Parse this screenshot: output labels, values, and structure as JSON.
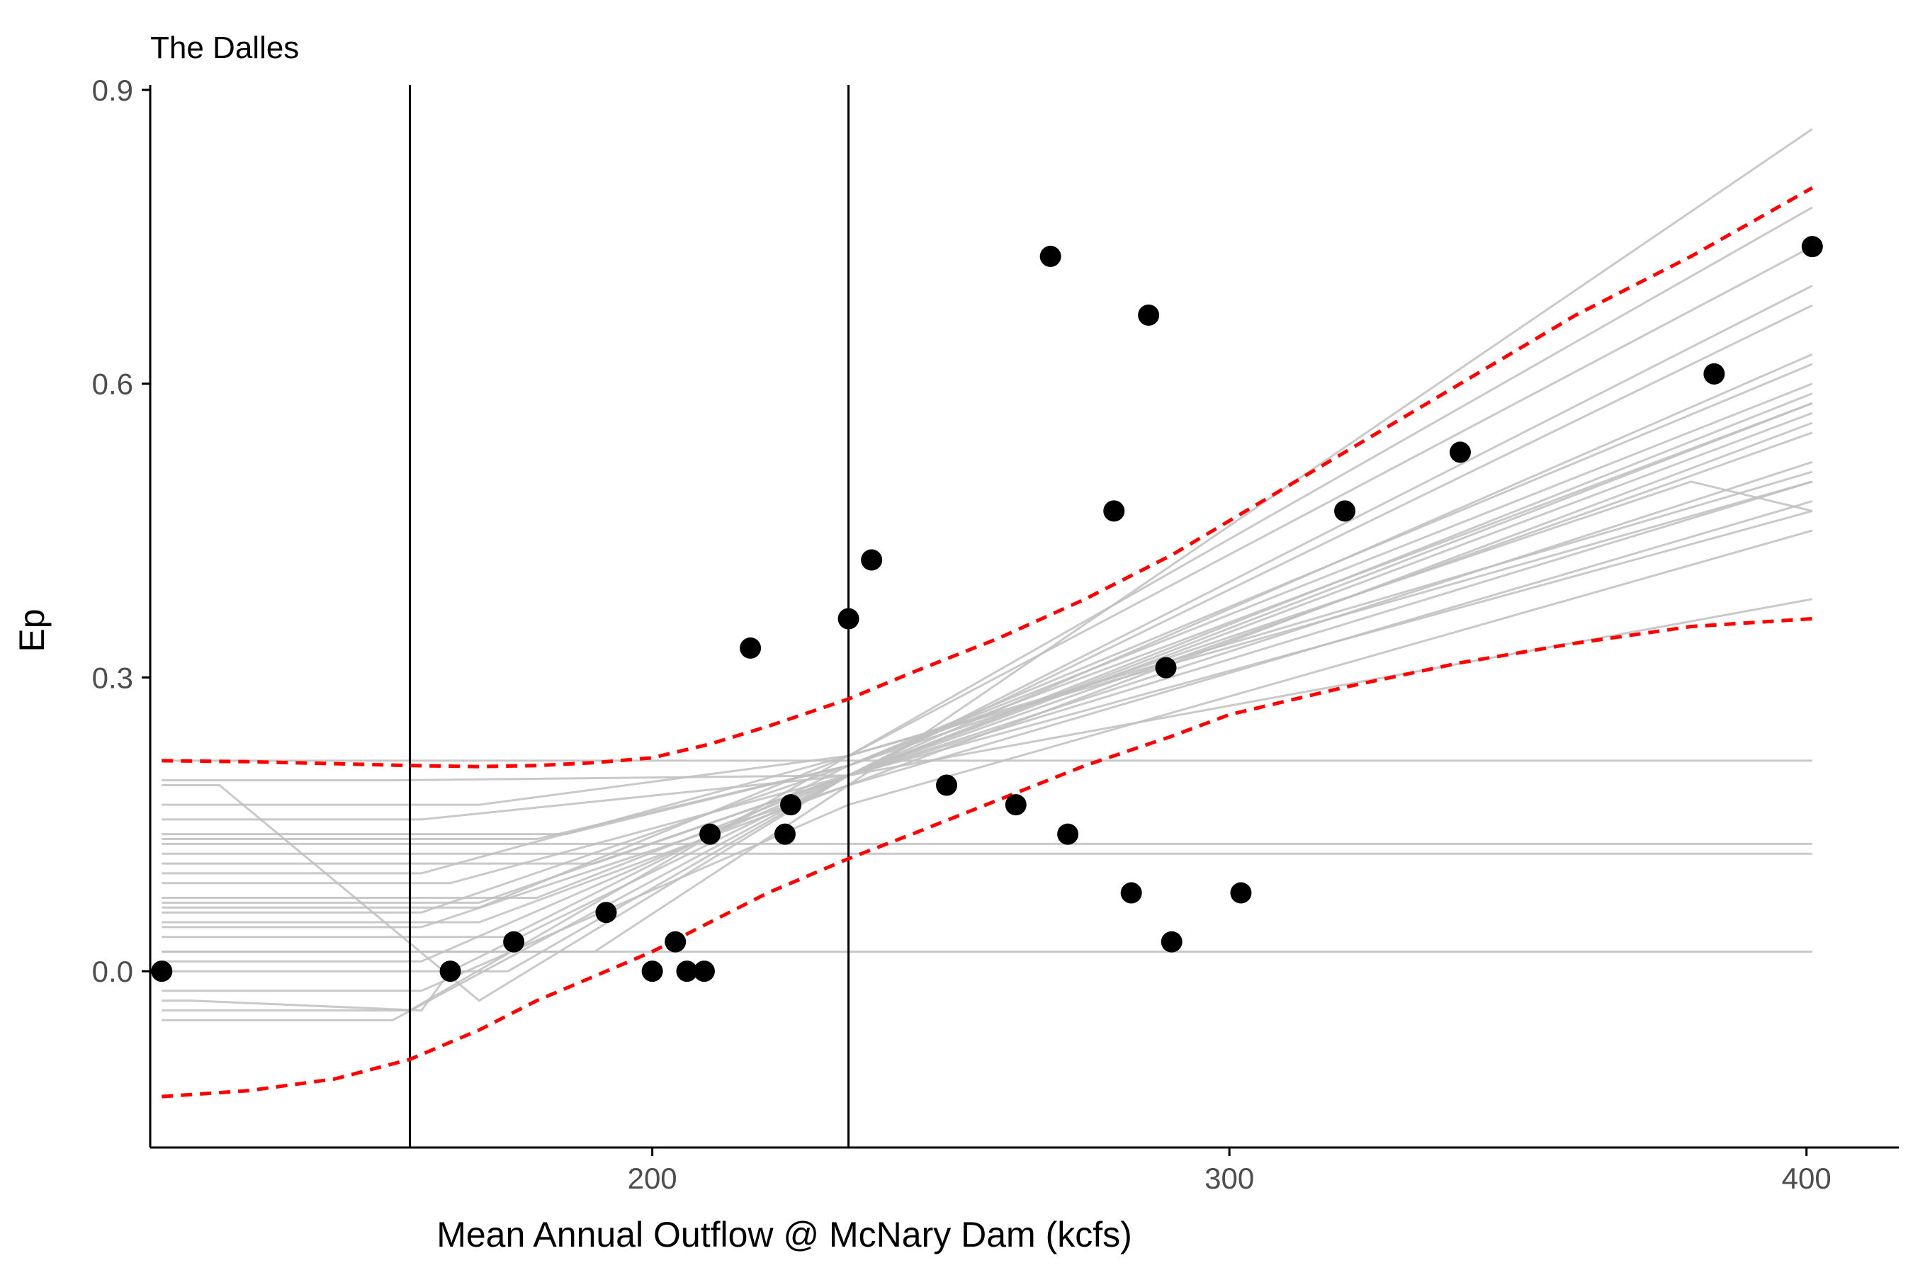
{
  "chart_data": {
    "type": "scatter",
    "title": "The Dalles",
    "xlabel": "Mean Annual Outflow @ McNary Dam (kcfs)",
    "ylabel": "Ep",
    "xlim": [
      113,
      416
    ],
    "ylim": [
      -0.18,
      0.905
    ],
    "x_ticks": [
      200,
      300,
      400
    ],
    "x_tick_labels": [
      "200",
      "300",
      "400"
    ],
    "y_ticks": [
      0.0,
      0.3,
      0.6,
      0.9
    ],
    "y_tick_labels": [
      "0.0",
      "0.3",
      "0.6",
      "0.9"
    ],
    "grid": false,
    "legend": "none",
    "vertical_lines": [
      158,
      234
    ],
    "colors": {
      "points": "#000000",
      "bootstrap": "#bfbfbf",
      "band": "#ff0000",
      "vline": "#000000",
      "axis": "#000000"
    },
    "points": {
      "x": [
        115,
        165,
        176,
        192,
        200,
        204,
        206,
        209,
        210,
        217,
        223,
        224,
        234,
        238,
        251,
        263,
        269,
        272,
        280,
        283,
        286,
        289,
        290,
        302,
        320,
        340,
        384,
        401
      ],
      "y": [
        0.0,
        0.0,
        0.03,
        0.06,
        0.0,
        0.03,
        0.0,
        0.0,
        0.14,
        0.33,
        0.14,
        0.17,
        0.36,
        0.42,
        0.19,
        0.17,
        0.73,
        0.14,
        0.47,
        0.08,
        0.67,
        0.31,
        0.03,
        0.08,
        0.47,
        0.53,
        0.61,
        0.74
      ]
    },
    "band_x": [
      115,
      130,
      145,
      158,
      170,
      180,
      190,
      200,
      210,
      220,
      230,
      234,
      245,
      260,
      275,
      290,
      300,
      320,
      340,
      360,
      380,
      401
    ],
    "band_upper": [
      0.215,
      0.214,
      0.212,
      0.21,
      0.209,
      0.21,
      0.213,
      0.218,
      0.232,
      0.25,
      0.27,
      0.278,
      0.305,
      0.34,
      0.38,
      0.425,
      0.46,
      0.53,
      0.6,
      0.67,
      0.73,
      0.8
    ],
    "band_lower": [
      -0.128,
      -0.122,
      -0.11,
      -0.09,
      -0.06,
      -0.03,
      -0.005,
      0.02,
      0.05,
      0.08,
      0.105,
      0.115,
      0.14,
      0.175,
      0.21,
      0.24,
      0.262,
      0.29,
      0.315,
      0.335,
      0.352,
      0.36
    ],
    "bootstrap_lines": [
      {
        "x": [
          115,
          401
        ],
        "y": [
          0.215,
          0.215
        ]
      },
      {
        "x": [
          115,
          401
        ],
        "y": [
          0.13,
          0.13
        ]
      },
      {
        "x": [
          115,
          401
        ],
        "y": [
          0.12,
          0.12
        ]
      },
      {
        "x": [
          115,
          401
        ],
        "y": [
          0.02,
          0.02
        ]
      },
      {
        "x": [
          115,
          155,
          234,
          401
        ],
        "y": [
          0.195,
          0.195,
          0.2,
          0.38
        ]
      },
      {
        "x": [
          115,
          170,
          234,
          401
        ],
        "y": [
          0.17,
          0.17,
          0.22,
          0.5
        ]
      },
      {
        "x": [
          115,
          160,
          234,
          401
        ],
        "y": [
          0.155,
          0.155,
          0.2,
          0.47
        ]
      },
      {
        "x": [
          115,
          180,
          234,
          401
        ],
        "y": [
          0.135,
          0.135,
          0.21,
          0.58
        ]
      },
      {
        "x": [
          115,
          190,
          234,
          401
        ],
        "y": [
          0.11,
          0.11,
          0.2,
          0.55
        ]
      },
      {
        "x": [
          115,
          165,
          234,
          401
        ],
        "y": [
          0.09,
          0.09,
          0.2,
          0.52
        ]
      },
      {
        "x": [
          115,
          170,
          234,
          401
        ],
        "y": [
          0.07,
          0.07,
          0.2,
          0.58
        ]
      },
      {
        "x": [
          115,
          160,
          234,
          401
        ],
        "y": [
          0.06,
          0.06,
          0.21,
          0.6
        ]
      },
      {
        "x": [
          115,
          170,
          234,
          401
        ],
        "y": [
          0.05,
          0.05,
          0.19,
          0.56
        ]
      },
      {
        "x": [
          115,
          175,
          234,
          401
        ],
        "y": [
          0.035,
          0.035,
          0.21,
          0.62
        ]
      },
      {
        "x": [
          115,
          160,
          234,
          401
        ],
        "y": [
          0.01,
          0.01,
          0.2,
          0.57
        ]
      },
      {
        "x": [
          115,
          160,
          234,
          401
        ],
        "y": [
          -0.02,
          -0.02,
          0.17,
          0.45
        ]
      },
      {
        "x": [
          115,
          158,
          234,
          401
        ],
        "y": [
          -0.04,
          -0.04,
          0.22,
          0.74
        ]
      },
      {
        "x": [
          115,
          155,
          234,
          401
        ],
        "y": [
          -0.05,
          -0.05,
          0.2,
          0.7
        ]
      },
      {
        "x": [
          115,
          120,
          160,
          165,
          234,
          401
        ],
        "y": [
          -0.03,
          -0.03,
          -0.04,
          0.0,
          0.2,
          0.63
        ]
      },
      {
        "x": [
          115,
          125,
          170,
          234,
          401
        ],
        "y": [
          0.19,
          0.19,
          -0.03,
          0.2,
          0.5
        ]
      },
      {
        "x": [
          115,
          175,
          234,
          401
        ],
        "y": [
          0.0,
          0.0,
          0.2,
          0.68
        ]
      },
      {
        "x": [
          115,
          180,
          234,
          401
        ],
        "y": [
          0.075,
          0.075,
          0.2,
          0.59
        ]
      },
      {
        "x": [
          115,
          160,
          234,
          401
        ],
        "y": [
          0.1,
          0.1,
          0.22,
          0.78
        ]
      },
      {
        "x": [
          115,
          160,
          234,
          401
        ],
        "y": [
          0.045,
          0.045,
          0.19,
          0.86
        ]
      },
      {
        "x": [
          115,
          190,
          234,
          401
        ],
        "y": [
          0.02,
          0.02,
          0.19,
          0.48
        ]
      },
      {
        "x": [
          115,
          170,
          234,
          401
        ],
        "y": [
          0.065,
          0.065,
          0.22,
          0.51
        ]
      },
      {
        "x": [
          115,
          185,
          234,
          380,
          401
        ],
        "y": [
          0.14,
          0.14,
          0.21,
          0.5,
          0.47
        ]
      }
    ]
  }
}
